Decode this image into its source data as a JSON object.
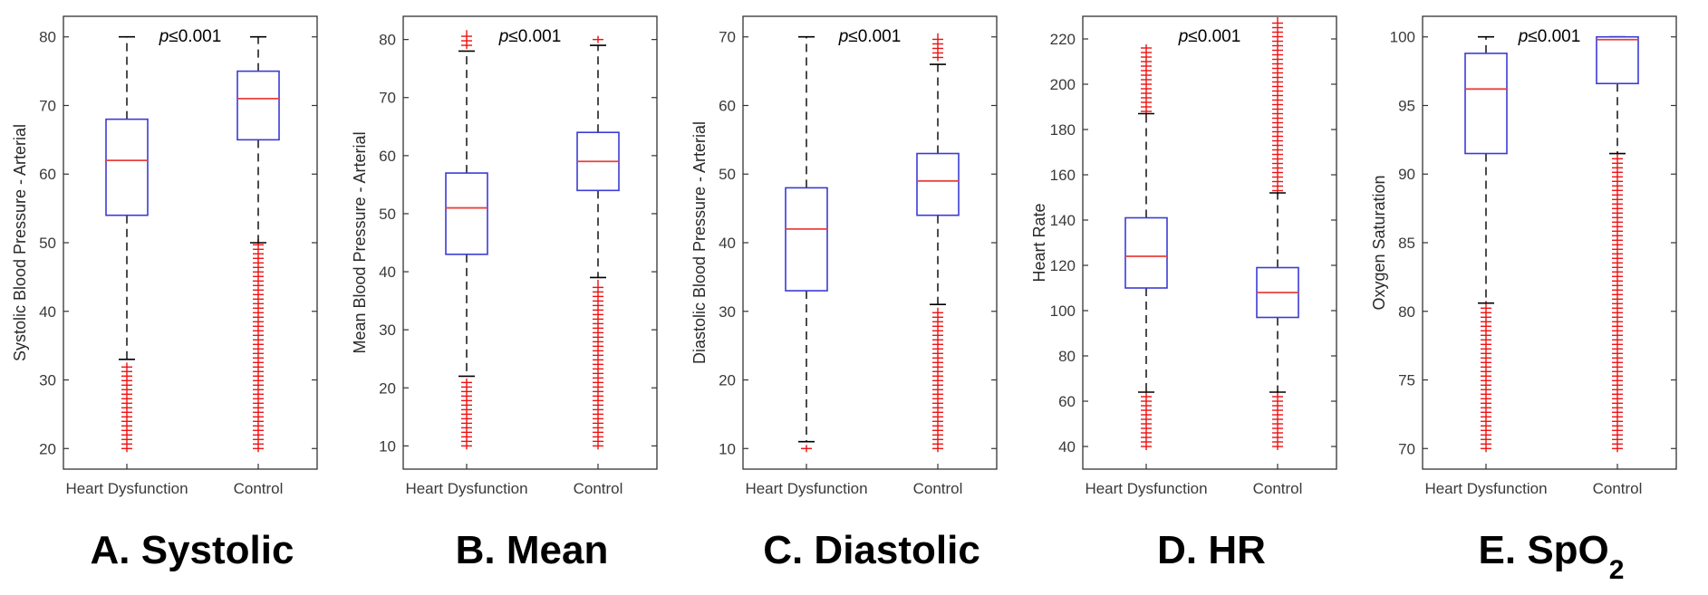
{
  "chart_data": [
    {
      "type": "box",
      "panel_label": "A. Systolic",
      "ylabel": "Systolic Blood Pressure - Arterial",
      "ylim": [
        17,
        83
      ],
      "yticks": [
        20,
        30,
        40,
        50,
        60,
        70,
        80
      ],
      "p_value": {
        "italic": "p",
        "text": "≤0.001"
      },
      "categories": [
        "Heart Dysfunction",
        "Control"
      ],
      "boxes": [
        {
          "category": "Heart Dysfunction",
          "q1": 54,
          "median": 62,
          "q3": 68,
          "whisker_low": 33,
          "whisker_high": 80,
          "outliers_low": [
            20,
            32
          ],
          "outliers_high": null
        },
        {
          "category": "Control",
          "q1": 65,
          "median": 71,
          "q3": 75,
          "whisker_low": 50,
          "whisker_high": 80,
          "outliers_low": [
            20,
            50
          ],
          "outliers_high": null
        }
      ]
    },
    {
      "type": "box",
      "panel_label": "B. Mean",
      "ylabel": "Mean Blood Pressure - Arterial",
      "ylim": [
        6,
        84
      ],
      "yticks": [
        10,
        20,
        30,
        40,
        50,
        60,
        70,
        80
      ],
      "p_value": {
        "italic": "p",
        "text": "≤0.001"
      },
      "categories": [
        "Heart Dysfunction",
        "Control"
      ],
      "boxes": [
        {
          "category": "Heart Dysfunction",
          "q1": 43,
          "median": 51,
          "q3": 57,
          "whisker_low": 22,
          "whisker_high": 78,
          "outliers_low": [
            10,
            21
          ],
          "outliers_high": [
            79,
            81
          ]
        },
        {
          "category": "Control",
          "q1": 54,
          "median": 59,
          "q3": 64,
          "whisker_low": 39,
          "whisker_high": 79,
          "outliers_low": [
            10,
            38
          ],
          "outliers_high": [
            80,
            80
          ]
        }
      ]
    },
    {
      "type": "box",
      "panel_label": "C. Diastolic",
      "ylabel": "Diastolic Blood Pressure - Arterial",
      "ylim": [
        7,
        73
      ],
      "yticks": [
        10,
        20,
        30,
        40,
        50,
        60,
        70
      ],
      "p_value": {
        "italic": "p",
        "text": "≤0.001"
      },
      "categories": [
        "Heart Dysfunction",
        "Control"
      ],
      "boxes": [
        {
          "category": "Heart Dysfunction",
          "q1": 33,
          "median": 42,
          "q3": 48,
          "whisker_low": 11,
          "whisker_high": 70,
          "outliers_low": [
            10,
            10
          ],
          "outliers_high": null
        },
        {
          "category": "Control",
          "q1": 44,
          "median": 49,
          "q3": 53,
          "whisker_low": 31,
          "whisker_high": 66,
          "outliers_low": [
            10,
            30
          ],
          "outliers_high": [
            67,
            70
          ]
        }
      ]
    },
    {
      "type": "box",
      "panel_label": "D. HR",
      "ylabel": "Heart Rate",
      "ylim": [
        30,
        230
      ],
      "yticks": [
        40,
        60,
        80,
        100,
        120,
        140,
        160,
        180,
        200,
        220
      ],
      "p_value": {
        "italic": "p",
        "text": "≤0.001"
      },
      "categories": [
        "Heart Dysfunction",
        "Control"
      ],
      "boxes": [
        {
          "category": "Heart Dysfunction",
          "q1": 110,
          "median": 124,
          "q3": 141,
          "whisker_low": 64,
          "whisker_high": 187,
          "outliers_low": [
            40,
            63
          ],
          "outliers_high": [
            188,
            216
          ]
        },
        {
          "category": "Control",
          "q1": 97,
          "median": 108,
          "q3": 119,
          "whisker_low": 64,
          "whisker_high": 152,
          "outliers_low": [
            40,
            63
          ],
          "outliers_high": [
            153,
            228
          ]
        }
      ]
    },
    {
      "type": "box",
      "panel_label": "E. SpO2",
      "ylabel": "Oxygen Saturation",
      "ylim": [
        68.5,
        101.5
      ],
      "yticks": [
        70,
        75,
        80,
        85,
        90,
        95,
        100
      ],
      "p_value": {
        "italic": "p",
        "text": "≤0.001"
      },
      "categories": [
        "Heart Dysfunction",
        "Control"
      ],
      "boxes": [
        {
          "category": "Heart Dysfunction",
          "q1": 91.5,
          "median": 96.2,
          "q3": 98.8,
          "whisker_low": 80.6,
          "whisker_high": 100,
          "outliers_low": [
            70,
            80.5
          ],
          "outliers_high": null
        },
        {
          "category": "Control",
          "q1": 96.6,
          "median": 99.8,
          "q3": 100,
          "whisker_low": 91.5,
          "whisker_high": 100,
          "outliers_low": [
            70,
            91.4
          ],
          "outliers_high": null
        }
      ]
    }
  ],
  "colors": {
    "box": "#3b3bd6",
    "median": "#e8413c",
    "outlier": "#ee1111",
    "whisker": "#000000",
    "axis": "#333333"
  }
}
